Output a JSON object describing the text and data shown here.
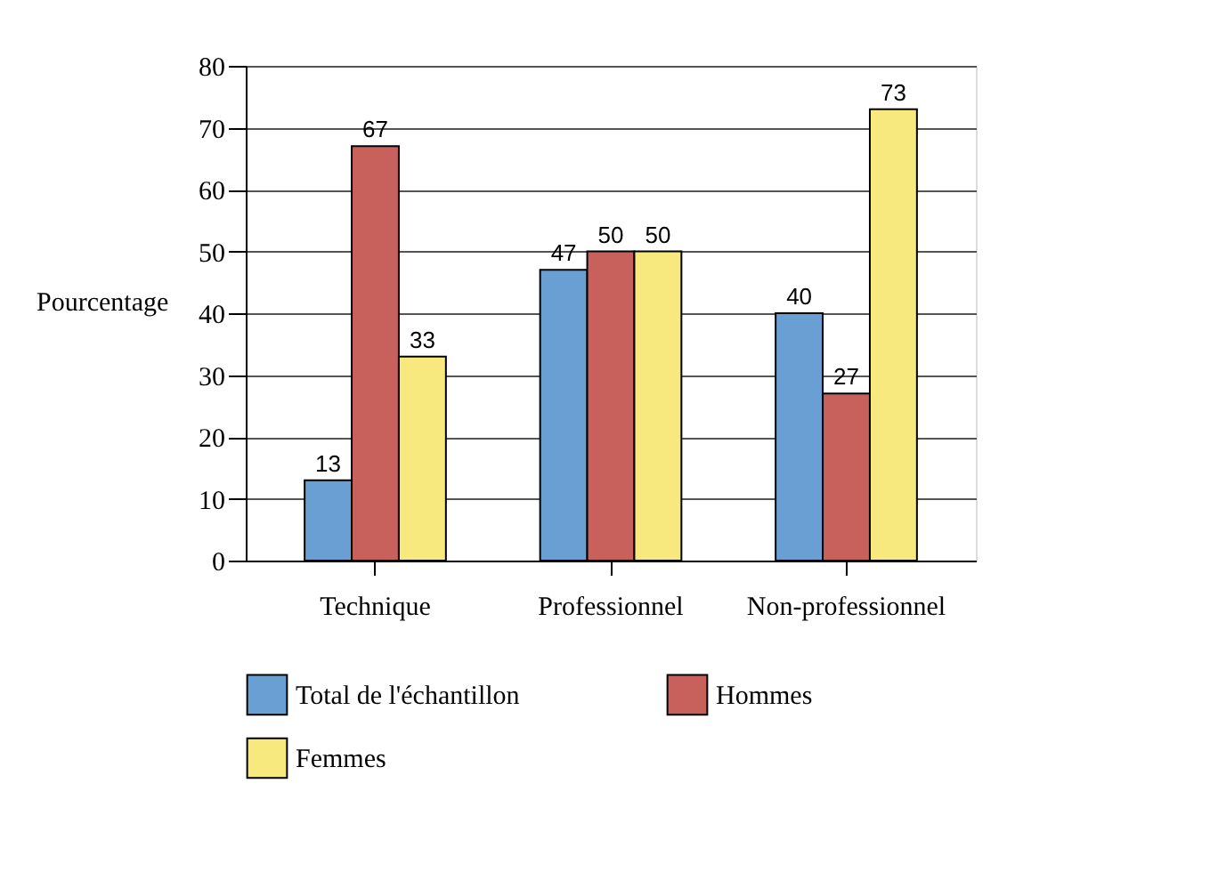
{
  "chart_data": {
    "type": "bar",
    "ylabel": "Pourcentage",
    "categories": [
      "Technique",
      "Professionnel",
      "Non-professionnel"
    ],
    "series": [
      {
        "name": "Total de l'échantillon",
        "color": "#6a9fd4",
        "values": [
          13,
          47,
          40
        ]
      },
      {
        "name": "Hommes",
        "color": "#c8605c",
        "values": [
          67,
          50,
          27
        ]
      },
      {
        "name": "Femmes",
        "color": "#f7e97e",
        "values": [
          33,
          50,
          73
        ]
      }
    ],
    "ylim": [
      0,
      80
    ],
    "yticks": [
      0,
      10,
      20,
      30,
      40,
      50,
      60,
      70,
      80
    ],
    "grid": "y",
    "legend": "bottom",
    "data_labels": true
  }
}
